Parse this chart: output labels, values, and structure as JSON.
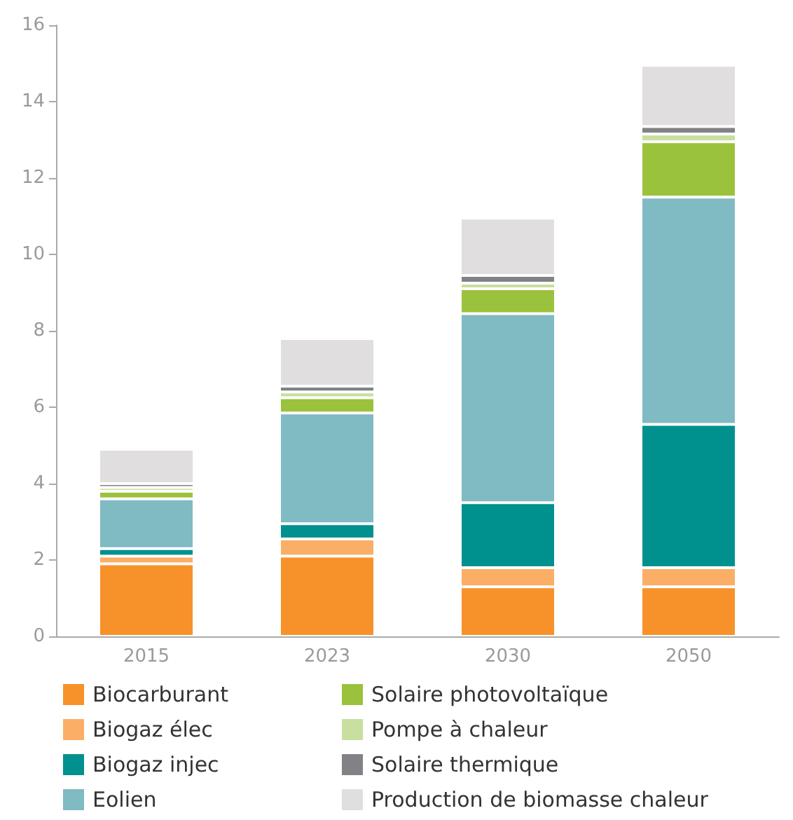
{
  "chart_data": {
    "type": "bar",
    "stacked": true,
    "categories": [
      "2015",
      "2023",
      "2030",
      "2050"
    ],
    "ylim": [
      0,
      16
    ],
    "yticks": [
      0,
      2,
      4,
      6,
      8,
      10,
      12,
      14,
      16
    ],
    "grid": false,
    "legend": "bottom",
    "series": [
      {
        "name": "Biocarburant",
        "color": "#f7922a",
        "values": [
          1.9,
          2.1,
          1.3,
          1.3
        ]
      },
      {
        "name": "Biogaz élec",
        "color": "#fbae66",
        "values": [
          0.2,
          0.45,
          0.5,
          0.5
        ]
      },
      {
        "name": "Biogaz injec",
        "color": "#00918e",
        "values": [
          0.2,
          0.4,
          1.7,
          3.75
        ]
      },
      {
        "name": "Eolien",
        "color": "#80bac2",
        "values": [
          1.3,
          2.9,
          4.95,
          5.95
        ]
      },
      {
        "name": "Solaire photovoltaïque",
        "color": "#9bc23c",
        "values": [
          0.2,
          0.4,
          0.65,
          1.45
        ]
      },
      {
        "name": "Pompe à chaleur",
        "color": "#c9df9f",
        "values": [
          0.1,
          0.15,
          0.15,
          0.2
        ]
      },
      {
        "name": "Solaire thermique",
        "color": "#808285",
        "values": [
          0.1,
          0.15,
          0.2,
          0.2
        ]
      },
      {
        "name": "Production de biomasse chaleur",
        "color": "#e0dedf",
        "values": [
          0.9,
          1.25,
          1.5,
          1.6
        ]
      }
    ]
  }
}
